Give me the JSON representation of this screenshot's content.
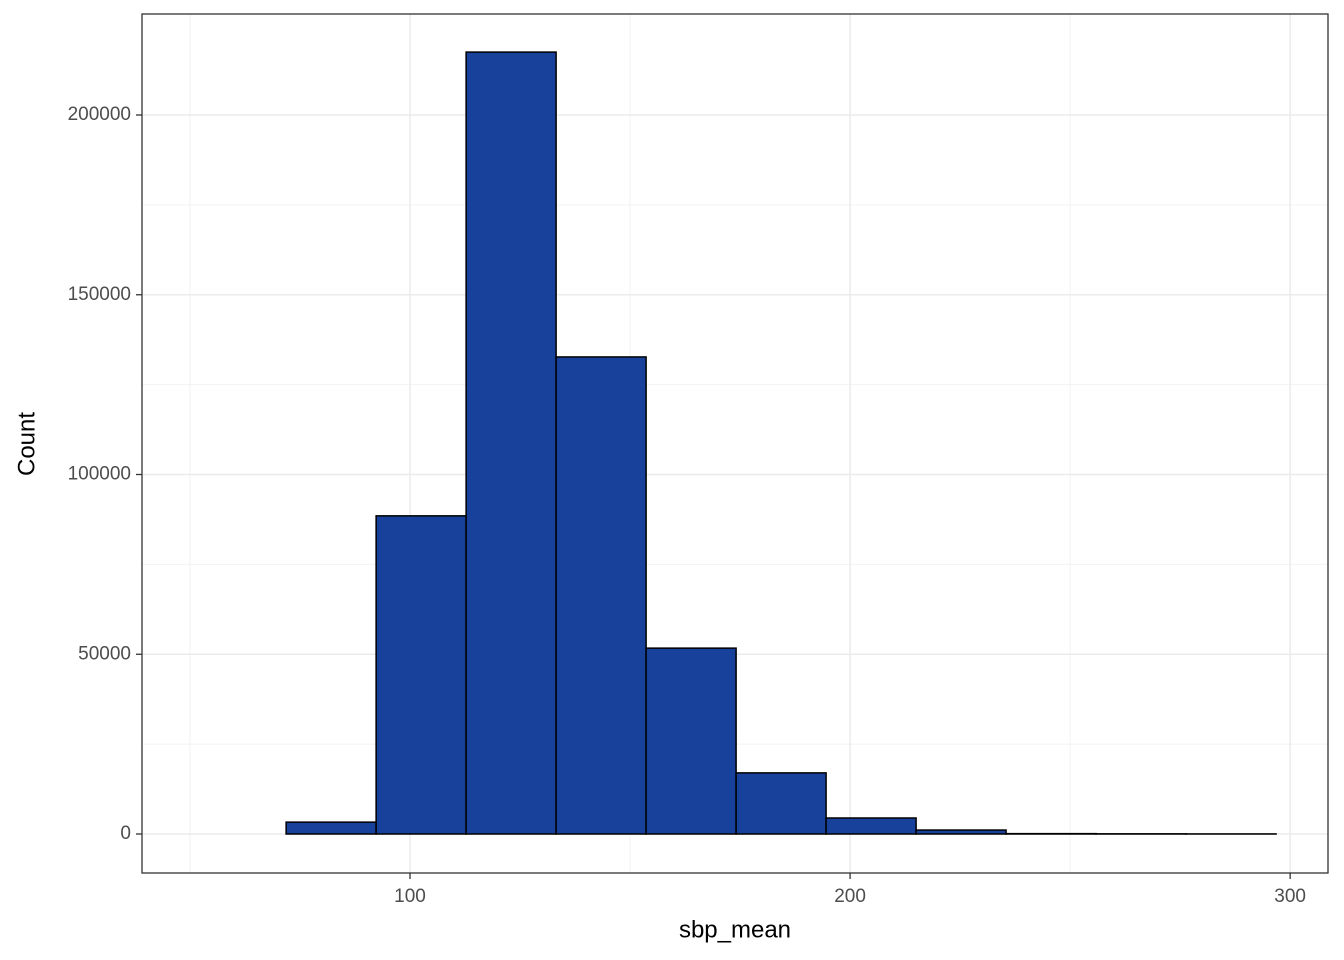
{
  "chart_data": {
    "type": "histogram",
    "x_label": "sbp_mean",
    "y_label": "Count",
    "bins": [
      51.4,
      71.85,
      92.3,
      112.75,
      133.2,
      153.65,
      174.1,
      194.55,
      215.0,
      235.45,
      255.9,
      276.35,
      296.8
    ],
    "counts": [
      0,
      3300,
      88500,
      217500,
      132700,
      51700,
      17000,
      4450,
      1100,
      100,
      50,
      20
    ],
    "color": "#17419a",
    "edge_color": "#000000",
    "xlim": [
      39.1,
      308.6
    ],
    "xticks": [
      100,
      200,
      300
    ],
    "ylim": [
      -10848,
      228095
    ],
    "yticks": [
      0,
      50000,
      100000,
      150000,
      200000
    ],
    "x_minor_grid": [
      50,
      150,
      250
    ],
    "y_minor_grid": [
      25000,
      75000,
      125000,
      175000
    ],
    "grid": true
  }
}
